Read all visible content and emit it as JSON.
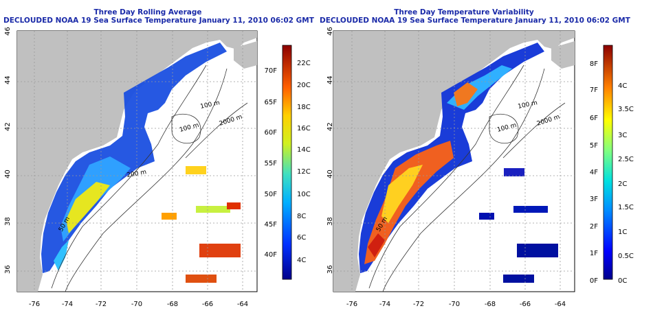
{
  "left_panel": {
    "title_line1": "Three Day Rolling Average",
    "title_line2": "DECLOUDED NOAA 19 Sea Surface Temperature January 11, 2010 06:02 GMT",
    "colorbar_celsius": [
      "22C",
      "20C",
      "18C",
      "16C",
      "14C",
      "12C",
      "10C",
      "8C",
      "6C",
      "4C"
    ],
    "colorbar_fahrenheit": [
      "70F",
      "65F",
      "60F",
      "55F",
      "50F",
      "45F",
      "40F"
    ]
  },
  "right_panel": {
    "title_line1": "Three Day Temperature Variability",
    "title_line2": "DECLOUDED NOAA 19 Sea Surface Temperature January 11, 2010 06:02 GMT",
    "colorbar_celsius": [
      "4C",
      "3.5C",
      "3C",
      "2.5C",
      "2C",
      "1.5C",
      "1C",
      "0.5C",
      "0C"
    ],
    "colorbar_fahrenheit": [
      "8F",
      "7F",
      "6F",
      "5F",
      "4F",
      "3F",
      "2F",
      "1F",
      "0F"
    ]
  },
  "lat_labels": [
    "46",
    "44",
    "42",
    "40",
    "38",
    "36"
  ],
  "lon_labels": [
    "-76",
    "-74",
    "-72",
    "-70",
    "-68",
    "-66",
    "-64"
  ],
  "contour_labels": {
    "c100a": "100 m",
    "c100b": "100 m",
    "c2000": "2000 m",
    "c200": "200 m",
    "c50": "50 m"
  },
  "colors": {
    "land": "#c0c0c0",
    "title": "#1a2aa8"
  }
}
